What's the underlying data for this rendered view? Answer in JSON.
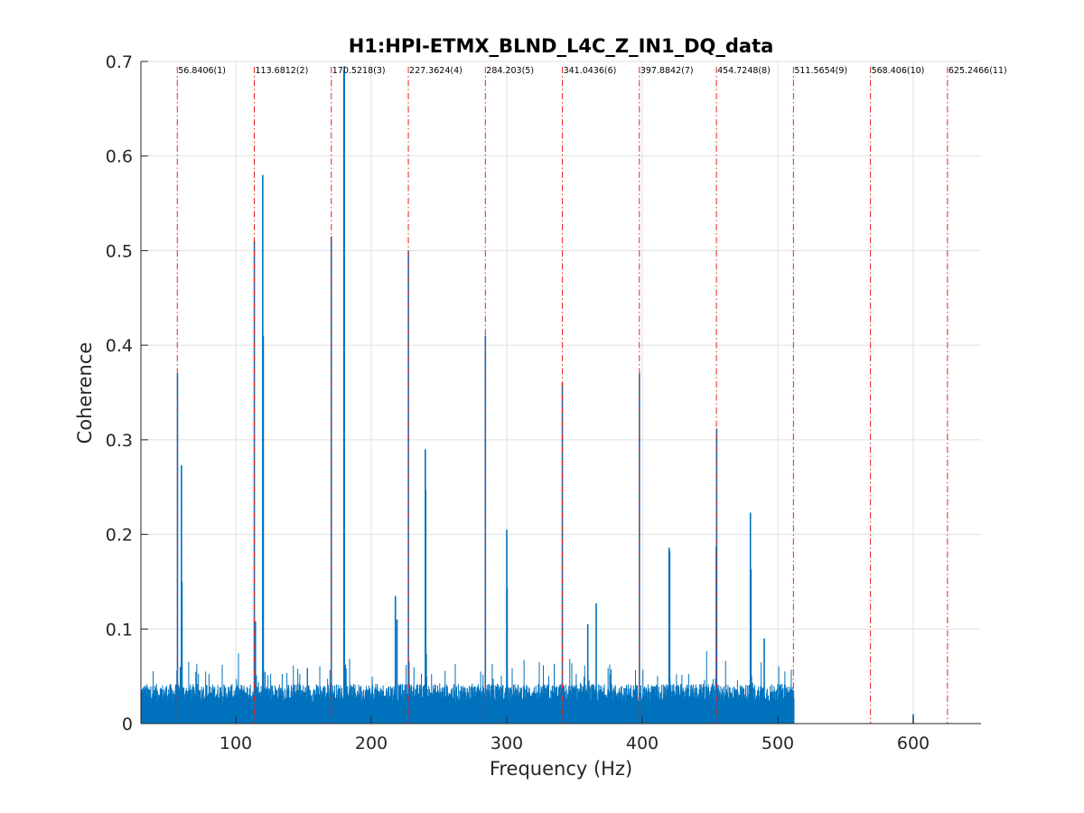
{
  "chart_data": {
    "type": "bar",
    "title": "H1:HPI-ETMX_BLND_L4C_Z_IN1_DQ_data",
    "xlabel": "Frequency (Hz)",
    "ylabel": "Coherence",
    "xlim": [
      30,
      650
    ],
    "ylim": [
      0,
      0.7
    ],
    "xticks": [
      100,
      200,
      300,
      400,
      500,
      600
    ],
    "yticks": [
      0,
      0.1,
      0.2,
      0.3,
      0.4,
      0.5,
      0.6,
      0.7
    ],
    "grid": true,
    "colors": {
      "series": "#0072BD",
      "harmonic_line": "#E8231E"
    },
    "noise_floor": {
      "x_range": [
        30,
        512
      ],
      "typical": 0.04,
      "max": 0.075
    },
    "series": [
      {
        "x": [
          57.0,
          59.9,
          60.3,
          113.7,
          114.5,
          119.9,
          120.3,
          170.5,
          179.8,
          180.1,
          217.8,
          219.0,
          227.4,
          239.9,
          240.2,
          284.2,
          300.0,
          300.3,
          341.0,
          359.8,
          366.0,
          397.9,
          419.8,
          420.2,
          454.6,
          454.9,
          479.8,
          480.2,
          490.0,
          600.0
        ],
        "values": [
          0.37,
          0.273,
          0.15,
          0.51,
          0.108,
          0.58,
          0.41,
          0.515,
          0.69,
          0.695,
          0.135,
          0.11,
          0.5,
          0.29,
          0.247,
          0.41,
          0.205,
          0.143,
          0.36,
          0.105,
          0.127,
          0.37,
          0.186,
          0.183,
          0.187,
          0.312,
          0.223,
          0.163,
          0.09,
          0.01
        ]
      }
    ],
    "harmonics": [
      {
        "x": 56.8406,
        "label": "56.8406(1)"
      },
      {
        "x": 113.6812,
        "label": "113.6812(2)"
      },
      {
        "x": 170.5218,
        "label": "170.5218(3)"
      },
      {
        "x": 227.3624,
        "label": "227.3624(4)"
      },
      {
        "x": 284.203,
        "label": "284.203(5)"
      },
      {
        "x": 341.0436,
        "label": "341.0436(6)"
      },
      {
        "x": 397.8842,
        "label": "397.8842(7)"
      },
      {
        "x": 454.7248,
        "label": "454.7248(8)"
      },
      {
        "x": 511.5654,
        "label": "511.5654(9)"
      },
      {
        "x": 568.406,
        "label": "568.406(10)"
      },
      {
        "x": 625.2466,
        "label": "625.2466(11)"
      }
    ]
  }
}
